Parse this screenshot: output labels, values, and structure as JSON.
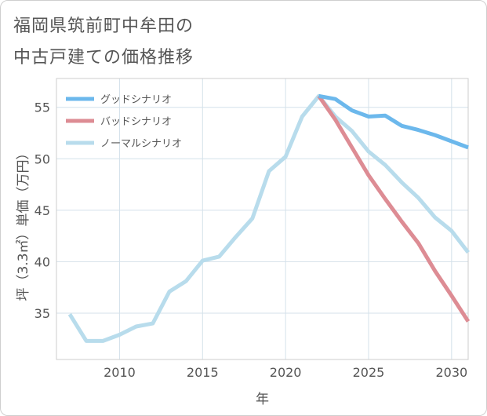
{
  "title_lines": [
    "福岡県筑前町中牟田の",
    "中古戸建ての価格推移"
  ],
  "chart_data": {
    "type": "line",
    "xlabel": "年",
    "ylabel": "坪（3.3㎡）単価（万円）",
    "xlim": [
      2006.2,
      2031.0
    ],
    "ylim": [
      30.5,
      57.8
    ],
    "x_ticks": [
      2010,
      2015,
      2020,
      2025,
      2030
    ],
    "y_ticks": [
      35,
      40,
      45,
      50,
      55
    ],
    "grid": true,
    "legend_position": "top-left",
    "series": [
      {
        "name": "グッドシナリオ",
        "color": "#6cb8ec",
        "x": [
          2022,
          2023,
          2024,
          2025,
          2026,
          2027,
          2028,
          2029,
          2030,
          2031
        ],
        "y": [
          56.1,
          55.8,
          54.7,
          54.1,
          54.2,
          53.2,
          52.8,
          52.3,
          51.7,
          51.1
        ]
      },
      {
        "name": "バッドシナリオ",
        "color": "#dd8c94",
        "x": [
          2022,
          2023,
          2024,
          2025,
          2026,
          2027,
          2028,
          2029,
          2030,
          2031
        ],
        "y": [
          56.1,
          53.8,
          51.1,
          48.4,
          46.1,
          43.9,
          41.8,
          39.1,
          36.7,
          34.2
        ]
      },
      {
        "name": "ノーマルシナリオ",
        "color": "#b8dcec",
        "x": [
          2007,
          2008,
          2009,
          2010,
          2011,
          2012,
          2013,
          2014,
          2015,
          2016,
          2017,
          2018,
          2019,
          2020,
          2021,
          2022,
          2023,
          2024,
          2025,
          2026,
          2027,
          2028,
          2029,
          2030,
          2031
        ],
        "y": [
          34.9,
          32.3,
          32.3,
          32.9,
          33.7,
          34.0,
          37.1,
          38.1,
          40.1,
          40.5,
          42.4,
          44.2,
          48.8,
          50.2,
          54.1,
          56.1,
          54.1,
          52.7,
          50.7,
          49.4,
          47.7,
          46.2,
          44.3,
          43.0,
          40.9
        ]
      }
    ]
  }
}
